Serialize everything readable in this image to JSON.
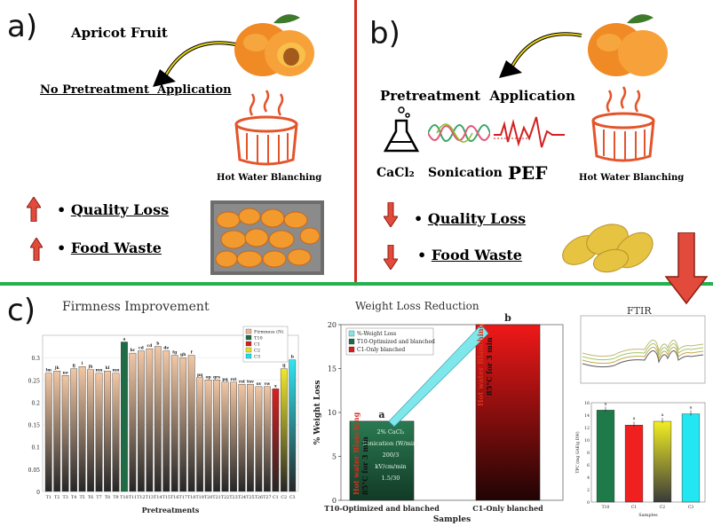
{
  "panel_a": {
    "letter": "a)",
    "title": "Apricot Fruit",
    "subtitle": "No Pretreatment  Application",
    "blanching_label": "Hot Water Blanching",
    "outcomes": [
      {
        "bullet": "•",
        "text": "Quality Loss"
      },
      {
        "bullet": "•",
        "text": "Food Waste"
      }
    ]
  },
  "panel_b": {
    "letter": "b)",
    "title": "Pretreatment  Application",
    "methods": [
      "CaCl₂",
      "Sonication",
      "PEF"
    ],
    "blanching_label": "Hot Water Blanching",
    "outcomes": [
      {
        "bullet": "•",
        "text": "Quality Loss"
      },
      {
        "bullet": "•",
        "text": "Food Waste"
      }
    ]
  },
  "panel_c": {
    "letter": "c)",
    "firmness_title": "Firmness Improvement",
    "weight_title": "Weight Loss Reduction",
    "ftir_title": "FTIR"
  },
  "colors": {
    "divider_red": "#d62b1e",
    "divider_green": "#22b14c",
    "apricot_orange": "#f08a24",
    "pot_orange": "#e4542a",
    "arrow_red": "#e24b3c",
    "bar_peach": "#e8b896",
    "t10_green": "#1f6b45",
    "c1_red": "#d21f1f",
    "c2_yellow": "#e6e21c",
    "c3_cyan": "#1ee1f0"
  },
  "chart_data": [
    {
      "type": "bar",
      "title": "Firmness Improvement",
      "xlabel": "Pretreatments",
      "ylabel": "",
      "ylim": [
        0,
        0.35
      ],
      "yticks": [
        "0",
        "0.05",
        "0.1",
        "0.15",
        "0.2",
        "0.25",
        "0.3"
      ],
      "legend": [
        "Firmness (N)",
        "T10",
        "C1",
        "C2",
        "C3"
      ],
      "categories": [
        "T1",
        "T2",
        "T3",
        "T4",
        "T5",
        "T6",
        "T7",
        "T8",
        "T9",
        "T10",
        "T11",
        "T12",
        "T13",
        "T14",
        "T15",
        "T16",
        "T17",
        "T18",
        "T19",
        "T20",
        "T21",
        "T22",
        "T23",
        "T24",
        "T25",
        "T26",
        "T27",
        "C1",
        "C2",
        "C3"
      ],
      "values": [
        0.265,
        0.27,
        0.26,
        0.275,
        0.28,
        0.273,
        0.265,
        0.27,
        0.265,
        0.335,
        0.31,
        0.315,
        0.32,
        0.325,
        0.315,
        0.305,
        0.3,
        0.305,
        0.255,
        0.25,
        0.25,
        0.245,
        0.245,
        0.24,
        0.24,
        0.235,
        0.235,
        0.23,
        0.275,
        0.295
      ],
      "labels": [
        "lm",
        "jk",
        "no",
        "ij",
        "i",
        "jk",
        "mn",
        "kl",
        "mn",
        "a",
        "bc",
        "cd",
        "cd",
        "b",
        "de",
        "fg",
        "gh",
        "f",
        "pq",
        "op",
        "qrs",
        "pq",
        "rst",
        "rst",
        "tuv",
        "uv",
        "vw",
        "x",
        "ij",
        "b"
      ]
    },
    {
      "type": "bar",
      "title": "Weight Loss Reduction",
      "xlabel": "Samples",
      "ylabel": "% Weight Loss",
      "ylim": [
        0,
        20
      ],
      "yticks": [
        "0",
        "5",
        "10",
        "15",
        "20"
      ],
      "legend": [
        "%-Weight Loss",
        "T10-Optimized and blanched",
        "C1-Only blanched"
      ],
      "categories": [
        "T10-Optimized and blanched",
        "C1-Only blanched"
      ],
      "values": [
        9,
        20
      ],
      "letters": [
        "a",
        "b"
      ],
      "annotations": {
        "blanch_label": "Hot water Blanching",
        "blanch_condition": "85°C for 3 min",
        "t10_inner": [
          "2% CaCl₂",
          "Sonication (W/min)",
          "200/3",
          "kV/cm/min",
          "1.5/30"
        ]
      }
    },
    {
      "type": "bar",
      "title": "TPC",
      "xlabel": "Samples",
      "ylabel": "TPC (mg GAE/g DW)",
      "ylim": [
        0,
        16
      ],
      "yticks": [
        "0",
        "2",
        "4",
        "6",
        "8",
        "10",
        "12",
        "14",
        "16"
      ],
      "categories": [
        "T10",
        "C1",
        "C2",
        "C3"
      ],
      "values": [
        14.8,
        12.4,
        13.0,
        14.2
      ],
      "letters": [
        "a",
        "a",
        "a",
        "a"
      ]
    }
  ]
}
